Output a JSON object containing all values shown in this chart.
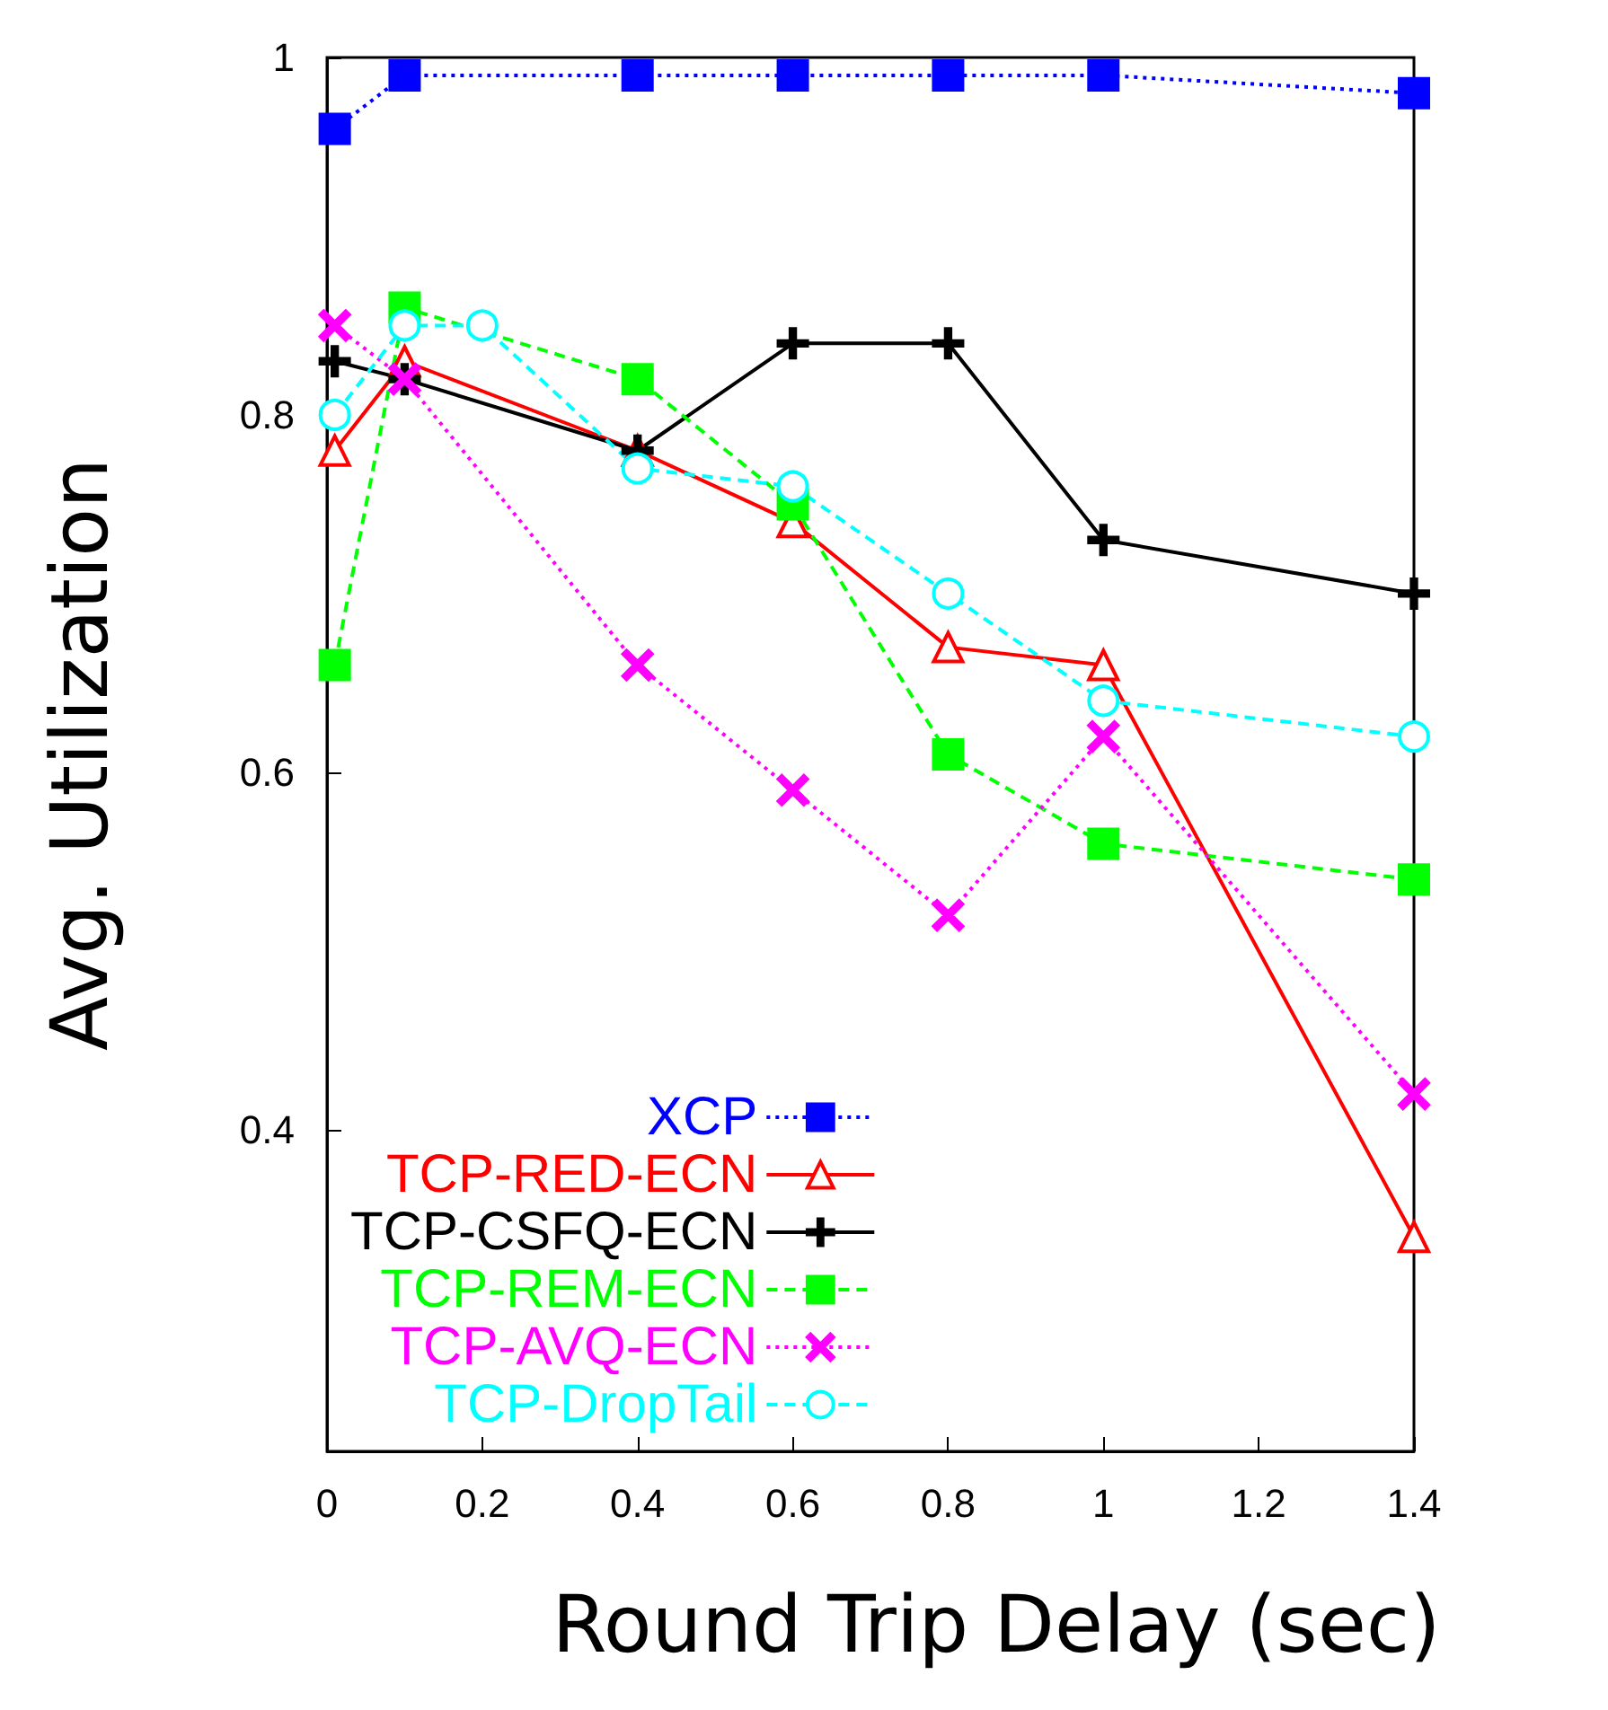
{
  "chart_data": {
    "type": "line",
    "xlabel": "Round Trip Delay (sec)",
    "ylabel": "Avg. Utilization",
    "xlim": [
      0,
      1.4
    ],
    "xticks": [
      0,
      0.2,
      0.4,
      0.6,
      0.8,
      1,
      1.2,
      1.4
    ],
    "ylim": [
      0.22,
      1
    ],
    "yticks": [
      0.4,
      0.6,
      0.8,
      1
    ],
    "grid": false,
    "legend": "bottom left",
    "series": [
      {
        "name": "XCP",
        "color": "#0000ff",
        "marker": "square",
        "line_style": "dotted",
        "x": [
          0.01,
          0.1,
          0.4,
          0.6,
          0.8,
          1,
          1.4
        ],
        "values": [
          0.96,
          0.99,
          0.99,
          0.99,
          0.99,
          0.99,
          0.98
        ]
      },
      {
        "name": "TCP-RED-ECN",
        "color": "#ff0000",
        "marker": "triangle",
        "line_style": "solid",
        "x": [
          0.01,
          0.1,
          0.4,
          0.6,
          0.8,
          1,
          1.4
        ],
        "values": [
          0.78,
          0.83,
          0.78,
          0.74,
          0.67,
          0.66,
          0.34
        ]
      },
      {
        "name": "TCP-CSFQ-ECN",
        "color": "#000000",
        "marker": "cross",
        "line_style": "solid",
        "x": [
          0.01,
          0.1,
          0.4,
          0.6,
          0.8,
          1,
          1.4
        ],
        "values": [
          0.83,
          0.82,
          0.78,
          0.84,
          0.84,
          0.73,
          0.7
        ]
      },
      {
        "name": "TCP-REM-ECN",
        "color": "#00ff00",
        "marker": "square",
        "line_style": "dashed",
        "x": [
          0.01,
          0.1,
          0.4,
          0.6,
          0.8,
          1,
          1.4
        ],
        "values": [
          0.66,
          0.86,
          0.82,
          0.75,
          0.61,
          0.56,
          0.54
        ]
      },
      {
        "name": "TCP-AVQ-ECN",
        "color": "#ff00ff",
        "marker": "x",
        "line_style": "dotted",
        "x": [
          0.01,
          0.1,
          0.4,
          0.6,
          0.8,
          1,
          1.4
        ],
        "values": [
          0.85,
          0.82,
          0.66,
          0.59,
          0.52,
          0.62,
          0.42
        ]
      },
      {
        "name": "TCP-DropTail",
        "color": "#00ffff",
        "marker": "circle",
        "line_style": "dashed",
        "x": [
          0.01,
          0.1,
          0.2,
          0.4,
          0.6,
          0.8,
          1,
          1.4
        ],
        "values": [
          0.8,
          0.85,
          0.85,
          0.77,
          0.76,
          0.7,
          0.64,
          0.62
        ]
      }
    ]
  }
}
